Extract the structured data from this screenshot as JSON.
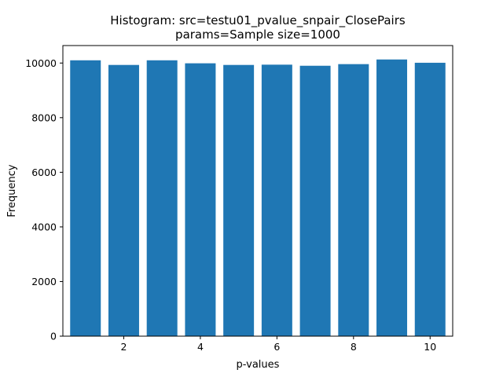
{
  "chart_data": {
    "type": "bar",
    "title": "Histogram: src=testu01_pvalue_snpair_ClosePairs",
    "subtitle": "params=Sample size=1000",
    "xlabel": "p-values",
    "ylabel": "Frequency",
    "x": [
      1,
      2,
      3,
      4,
      5,
      6,
      7,
      8,
      9,
      10
    ],
    "values": [
      10100,
      9930,
      10100,
      9990,
      9930,
      9940,
      9900,
      9960,
      10130,
      10010
    ],
    "bar_width": 0.8,
    "xlim": [
      0.41,
      10.59
    ],
    "ylim": [
      0,
      10640
    ],
    "xticks": [
      2,
      4,
      6,
      8,
      10
    ],
    "xtick_labels": [
      "2",
      "4",
      "6",
      "8",
      "10"
    ],
    "yticks": [
      0,
      2000,
      4000,
      6000,
      8000,
      10000
    ],
    "ytick_labels": [
      "0",
      "2000",
      "4000",
      "6000",
      "8000",
      "10000"
    ],
    "bar_color": "#1f77b4",
    "grid": false,
    "legend": "none"
  }
}
